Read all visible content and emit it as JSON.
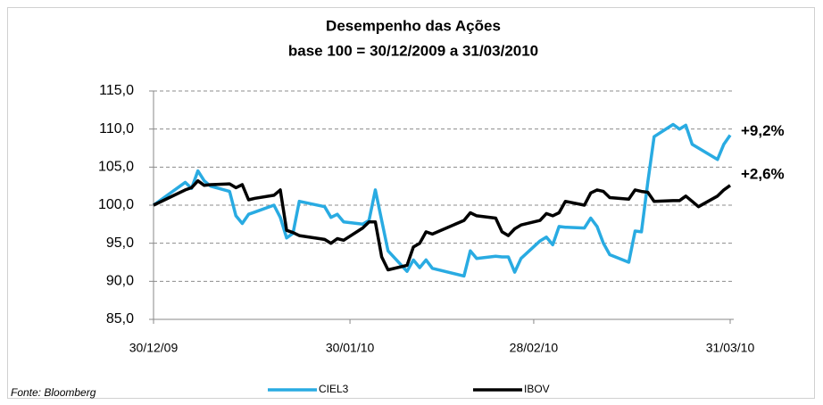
{
  "chart_data": {
    "type": "line",
    "title": "Desempenho das Ações",
    "subtitle": "base 100 = 30/12/2009 a 31/03/2010",
    "source": "Fonte: Bloomberg",
    "x": [
      "30/12/09",
      "04/01/10",
      "05/01/10",
      "06/01/10",
      "07/01/10",
      "08/01/10",
      "11/01/10",
      "12/01/10",
      "13/01/10",
      "14/01/10",
      "15/01/10",
      "18/01/10",
      "19/01/10",
      "20/01/10",
      "21/01/10",
      "22/01/10",
      "26/01/10",
      "27/01/10",
      "28/01/10",
      "29/01/10",
      "01/02/10",
      "02/02/10",
      "03/02/10",
      "04/02/10",
      "05/02/10",
      "08/02/10",
      "09/02/10",
      "10/02/10",
      "11/02/10",
      "12/02/10",
      "17/02/10",
      "18/02/10",
      "19/02/10",
      "22/02/10",
      "23/02/10",
      "24/02/10",
      "25/02/10",
      "26/02/10",
      "01/03/10",
      "02/03/10",
      "03/03/10",
      "04/03/10",
      "05/03/10",
      "08/03/10",
      "09/03/10",
      "10/03/10",
      "11/03/10",
      "12/03/10",
      "15/03/10",
      "16/03/10",
      "17/03/10",
      "18/03/10",
      "19/03/10",
      "22/03/10",
      "23/03/10",
      "24/03/10",
      "25/03/10",
      "26/03/10",
      "29/03/10",
      "30/03/10",
      "31/03/10"
    ],
    "series": [
      {
        "name": "CIEL3",
        "color": "#29abe2",
        "values": [
          100,
          103,
          102.2,
          104.5,
          103.2,
          102.5,
          101.8,
          98.6,
          97.6,
          98.8,
          99.1,
          100,
          98.4,
          95.7,
          96.3,
          100.5,
          99.8,
          98.4,
          98.8,
          97.8,
          97.5,
          98,
          102,
          98,
          94,
          91.3,
          92.8,
          91.8,
          92.8,
          91.7,
          90.7,
          94,
          93,
          93.3,
          93.2,
          93.2,
          91.2,
          93,
          95.3,
          95.8,
          94.8,
          97.2,
          97.1,
          97,
          98.3,
          97.2,
          95,
          93.5,
          92.5,
          96.6,
          96.5,
          103,
          109,
          110.6,
          110,
          110.5,
          108,
          107.5,
          106,
          108,
          109.2
        ]
      },
      {
        "name": "IBOV",
        "color": "#000000",
        "values": [
          100,
          102,
          102.3,
          103.2,
          102.6,
          102.7,
          102.8,
          102.3,
          102.7,
          100.7,
          100.9,
          101.3,
          102,
          96.7,
          96.4,
          96,
          95.5,
          95,
          95.6,
          95.4,
          97,
          97.8,
          97.8,
          93.2,
          91.5,
          92.1,
          94.5,
          95,
          96.5,
          96.2,
          98,
          99,
          98.6,
          98.3,
          96.5,
          96,
          96.9,
          97.4,
          98,
          98.9,
          98.6,
          99,
          100.5,
          100,
          101.6,
          102,
          101.8,
          101,
          100.8,
          102,
          101.8,
          101.7,
          100.5,
          100.6,
          100.6,
          101.2,
          100.5,
          99.8,
          101.2,
          102,
          102.6
        ]
      }
    ],
    "annotations": [
      {
        "text": "+9,2%",
        "color": "#29abe2"
      },
      {
        "text": "+2,6%",
        "color": "#000000"
      }
    ],
    "xlim": [
      "30/12/09",
      "31/03/10"
    ],
    "xticks": [
      "30/12/09",
      "30/01/10",
      "28/02/10",
      "31/03/10"
    ],
    "ylim": [
      85,
      115
    ],
    "yticks": [
      {
        "value": 85,
        "label": "85,0"
      },
      {
        "value": 90,
        "label": "90,0"
      },
      {
        "value": 95,
        "label": "95,0"
      },
      {
        "value": 100,
        "label": "100,0"
      },
      {
        "value": 105,
        "label": "105,0"
      },
      {
        "value": 110,
        "label": "110,0"
      },
      {
        "value": 115,
        "label": "115,0"
      }
    ],
    "grid": true,
    "legend": "bottom"
  }
}
